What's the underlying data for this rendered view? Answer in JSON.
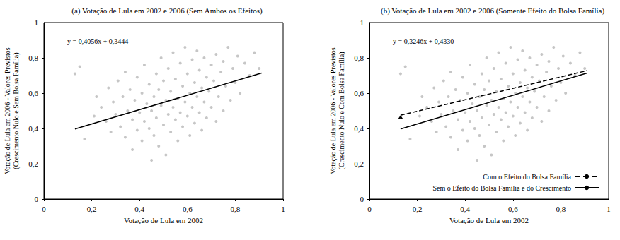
{
  "chart_data": [
    {
      "type": "scatter",
      "title": "(a) Votação de Lula em 2002 e 2006 (Sem Ambos os Efeitos)",
      "x_label": "Votação de Lula em 2002",
      "y_label": "Votação de Lula em 2006 - Valores Previstos\n(Crescimento Nulo e Sem Bolsa Família)",
      "annotation": "y = 0,4056x + 0,3444",
      "xlim": [
        0,
        1
      ],
      "ylim": [
        0,
        1
      ],
      "xticks": [
        0,
        {
          "value": 0.2,
          "label": "0,2"
        },
        {
          "value": 0.4,
          "label": "0,4"
        },
        {
          "value": 0.6,
          "label": "0,6"
        },
        {
          "value": 0.8,
          "label": "0,8"
        },
        1
      ],
      "yticks": [
        0,
        {
          "value": 0.2,
          "label": "0,2"
        },
        {
          "value": 0.4,
          "label": "0,4"
        },
        {
          "value": 0.6,
          "label": "0,6"
        },
        {
          "value": 0.8,
          "label": "0,8"
        },
        1
      ],
      "grid": false,
      "series": [
        {
          "type": "scatter",
          "color": "#c0c0c0",
          "marker": "circle",
          "x": [
            0.13,
            0.15,
            0.17,
            0.21,
            0.22,
            0.24,
            0.26,
            0.27,
            0.28,
            0.29,
            0.3,
            0.31,
            0.32,
            0.33,
            0.34,
            0.34,
            0.35,
            0.36,
            0.37,
            0.37,
            0.38,
            0.39,
            0.39,
            0.4,
            0.41,
            0.41,
            0.42,
            0.42,
            0.43,
            0.44,
            0.44,
            0.45,
            0.45,
            0.46,
            0.46,
            0.47,
            0.47,
            0.48,
            0.48,
            0.49,
            0.49,
            0.5,
            0.5,
            0.51,
            0.51,
            0.52,
            0.52,
            0.53,
            0.53,
            0.54,
            0.54,
            0.55,
            0.55,
            0.56,
            0.56,
            0.57,
            0.57,
            0.58,
            0.58,
            0.59,
            0.59,
            0.6,
            0.6,
            0.61,
            0.61,
            0.62,
            0.62,
            0.63,
            0.63,
            0.64,
            0.64,
            0.65,
            0.65,
            0.66,
            0.66,
            0.67,
            0.67,
            0.68,
            0.68,
            0.69,
            0.7,
            0.7,
            0.71,
            0.72,
            0.72,
            0.73,
            0.74,
            0.75,
            0.75,
            0.76,
            0.77,
            0.78,
            0.79,
            0.8,
            0.81,
            0.82,
            0.84,
            0.86,
            0.88,
            0.9
          ],
          "values": [
            0.71,
            0.75,
            0.34,
            0.47,
            0.58,
            0.52,
            0.44,
            0.63,
            0.38,
            0.55,
            0.48,
            0.67,
            0.41,
            0.58,
            0.35,
            0.72,
            0.5,
            0.62,
            0.28,
            0.45,
            0.56,
            0.39,
            0.69,
            0.49,
            0.6,
            0.33,
            0.76,
            0.44,
            0.54,
            0.4,
            0.65,
            0.22,
            0.5,
            0.58,
            0.36,
            0.71,
            0.46,
            0.62,
            0.3,
            0.53,
            0.8,
            0.42,
            0.67,
            0.56,
            0.25,
            0.48,
            0.74,
            0.38,
            0.61,
            0.52,
            0.83,
            0.45,
            0.68,
            0.33,
            0.57,
            0.77,
            0.49,
            0.64,
            0.41,
            0.55,
            0.86,
            0.47,
            0.71,
            0.36,
            0.6,
            0.79,
            0.52,
            0.66,
            0.43,
            0.58,
            0.84,
            0.49,
            0.73,
            0.63,
            0.39,
            0.55,
            0.8,
            0.69,
            0.46,
            0.61,
            0.76,
            0.52,
            0.67,
            0.44,
            0.82,
            0.58,
            0.72,
            0.5,
            0.78,
            0.64,
            0.86,
            0.56,
            0.74,
            0.66,
            0.81,
            0.6,
            0.77,
            0.7,
            0.83,
            0.74
          ]
        },
        {
          "type": "line",
          "color": "#000000",
          "line_style": "solid",
          "x": [
            0.13,
            0.91
          ],
          "values": [
            0.397,
            0.714
          ]
        }
      ]
    },
    {
      "type": "scatter",
      "title": "(b) Votação de Lula em 2002 e 2006 (Somente Efeito do Bolsa Família)",
      "x_label": "Votação de Lula em 2002",
      "y_label": "Votação de Lula em 2006 - Valores Previstos\n(Crescimento Nulo e Com Bolsa Família)",
      "annotation": "y = 0,3246x + 0,4330",
      "xlim": [
        0,
        1
      ],
      "ylim": [
        0,
        1
      ],
      "xticks": [
        0,
        {
          "value": 0.2,
          "label": "0,2"
        },
        {
          "value": 0.4,
          "label": "0,4"
        },
        {
          "value": 0.6,
          "label": "0,6"
        },
        {
          "value": 0.8,
          "label": "0,8"
        },
        1
      ],
      "yticks": [
        0,
        {
          "value": 0.2,
          "label": "0,2"
        },
        {
          "value": 0.4,
          "label": "0,4"
        },
        {
          "value": 0.6,
          "label": "0,6"
        },
        {
          "value": 0.8,
          "label": "0,8"
        },
        1
      ],
      "grid": false,
      "legend": "bottom-right",
      "series": [
        {
          "type": "scatter",
          "color": "#c0c0c0",
          "marker": "circle",
          "x": [
            0.13,
            0.15,
            0.17,
            0.21,
            0.22,
            0.24,
            0.26,
            0.27,
            0.28,
            0.29,
            0.3,
            0.31,
            0.32,
            0.33,
            0.34,
            0.34,
            0.35,
            0.36,
            0.37,
            0.37,
            0.38,
            0.39,
            0.39,
            0.4,
            0.41,
            0.41,
            0.42,
            0.42,
            0.43,
            0.44,
            0.44,
            0.45,
            0.45,
            0.46,
            0.46,
            0.47,
            0.47,
            0.48,
            0.48,
            0.49,
            0.49,
            0.5,
            0.5,
            0.51,
            0.51,
            0.52,
            0.52,
            0.53,
            0.53,
            0.54,
            0.54,
            0.55,
            0.55,
            0.56,
            0.56,
            0.57,
            0.57,
            0.58,
            0.58,
            0.59,
            0.59,
            0.6,
            0.6,
            0.61,
            0.61,
            0.62,
            0.62,
            0.63,
            0.63,
            0.64,
            0.64,
            0.65,
            0.65,
            0.66,
            0.66,
            0.67,
            0.67,
            0.68,
            0.68,
            0.69,
            0.7,
            0.7,
            0.71,
            0.72,
            0.72,
            0.73,
            0.74,
            0.75,
            0.75,
            0.76,
            0.77,
            0.78,
            0.79,
            0.8,
            0.81,
            0.82,
            0.84,
            0.86,
            0.88,
            0.9
          ],
          "values": [
            0.71,
            0.75,
            0.34,
            0.47,
            0.58,
            0.52,
            0.44,
            0.63,
            0.38,
            0.55,
            0.48,
            0.67,
            0.41,
            0.58,
            0.35,
            0.72,
            0.5,
            0.62,
            0.28,
            0.45,
            0.56,
            0.39,
            0.69,
            0.49,
            0.6,
            0.33,
            0.76,
            0.44,
            0.54,
            0.4,
            0.65,
            0.22,
            0.5,
            0.58,
            0.36,
            0.71,
            0.46,
            0.62,
            0.3,
            0.53,
            0.8,
            0.42,
            0.67,
            0.56,
            0.25,
            0.48,
            0.74,
            0.38,
            0.61,
            0.52,
            0.83,
            0.45,
            0.68,
            0.33,
            0.57,
            0.77,
            0.49,
            0.64,
            0.41,
            0.55,
            0.86,
            0.47,
            0.71,
            0.36,
            0.6,
            0.79,
            0.52,
            0.66,
            0.43,
            0.58,
            0.84,
            0.49,
            0.73,
            0.63,
            0.39,
            0.55,
            0.8,
            0.69,
            0.46,
            0.61,
            0.76,
            0.52,
            0.67,
            0.44,
            0.82,
            0.58,
            0.72,
            0.5,
            0.78,
            0.64,
            0.86,
            0.56,
            0.74,
            0.66,
            0.81,
            0.6,
            0.77,
            0.7,
            0.83,
            0.74
          ]
        },
        {
          "type": "line",
          "name": "Com o Efeito do Bolsa Família",
          "color": "#000000",
          "line_style": "dashed",
          "x": [
            0.13,
            0.91
          ],
          "values": [
            0.475,
            0.728
          ]
        },
        {
          "type": "line",
          "name": "Sem o Efeito do Bolsa Família e do Crescimento",
          "color": "#000000",
          "line_style": "solid",
          "x": [
            0.13,
            0.91
          ],
          "values": [
            0.397,
            0.714
          ]
        }
      ]
    }
  ]
}
